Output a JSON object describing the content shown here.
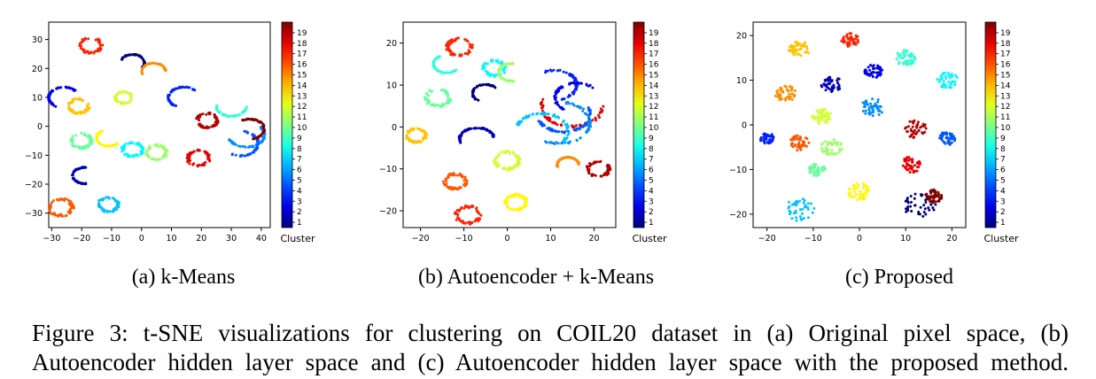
{
  "chart_data": [
    {
      "type": "scatter",
      "subcaption": "(a) k-Means",
      "x_ticks": [
        "−30",
        "−20",
        "−10",
        "0",
        "10",
        "20",
        "30",
        "40"
      ],
      "y_ticks": [
        "30",
        "20",
        "10",
        "0",
        "−10",
        "−20",
        "−30"
      ],
      "xlim": [
        -31,
        43
      ],
      "ylim": [
        -35,
        36
      ],
      "colorbar_label": "Cluster",
      "colorbar_ticks": [
        "19",
        "18",
        "17",
        "16",
        "15",
        "14",
        "13",
        "12",
        "11",
        "10",
        "9",
        "8",
        "7",
        "6",
        "5",
        "4",
        "3",
        "2",
        "1"
      ],
      "clusters": [
        {
          "cluster": 17,
          "shape": "loop",
          "x": -17,
          "y": 28,
          "r": 3.2
        },
        {
          "cluster": 16,
          "shape": "loop",
          "x": -27,
          "y": -28,
          "r": 3.5
        },
        {
          "cluster": 14,
          "shape": "loop",
          "x": -21,
          "y": 7,
          "r": 3
        },
        {
          "cluster": 10,
          "shape": "loop",
          "x": -20,
          "y": -5,
          "r": 3
        },
        {
          "cluster": 12,
          "shape": "loop",
          "x": -6,
          "y": 10,
          "r": 2.5
        },
        {
          "cluster": 8,
          "shape": "loop",
          "x": -3,
          "y": -8,
          "r": 3
        },
        {
          "cluster": 11,
          "shape": "loop",
          "x": 5,
          "y": -9,
          "r": 3
        },
        {
          "cluster": 7,
          "shape": "loop",
          "x": -11,
          "y": -27,
          "r": 3
        },
        {
          "cluster": 19,
          "shape": "loop",
          "x": 22,
          "y": 2,
          "r": 3
        },
        {
          "cluster": 18,
          "shape": "loop",
          "x": 19,
          "y": -11,
          "r": 3.2
        },
        {
          "cluster": 3,
          "shape": "arc",
          "x": -26,
          "y": 10,
          "r": 5
        },
        {
          "cluster": 2,
          "shape": "arc",
          "x": -19,
          "y": -17,
          "r": 4
        },
        {
          "cluster": 13,
          "shape": "arc",
          "x": -11,
          "y": -4,
          "r": 4
        },
        {
          "cluster": 9,
          "shape": "arc",
          "x": 30,
          "y": 7,
          "r": 5
        },
        {
          "cluster": 6,
          "shape": "arc",
          "x": 35,
          "y": -3,
          "r": 6
        },
        {
          "cluster": 5,
          "shape": "arc",
          "x": 33,
          "y": -6,
          "r": 6
        },
        {
          "cluster": 20,
          "shape": "arc",
          "x": 36,
          "y": -1,
          "r": 5
        },
        {
          "cluster": 1,
          "shape": "arc",
          "x": -3,
          "y": 22,
          "r": 4
        },
        {
          "cluster": 15,
          "shape": "arc",
          "x": 4,
          "y": 19,
          "r": 4
        },
        {
          "cluster": 4,
          "shape": "arc",
          "x": 14,
          "y": 10,
          "r": 5
        }
      ]
    },
    {
      "type": "scatter",
      "subcaption": "(b) Autoencoder + k-Means",
      "x_ticks": [
        "−20",
        "−10",
        "0",
        "10",
        "20"
      ],
      "y_ticks": [
        "20",
        "10",
        "0",
        "−10",
        "−20"
      ],
      "xlim": [
        -24,
        25
      ],
      "ylim": [
        -24,
        25
      ],
      "colorbar_label": "Cluster",
      "colorbar_ticks": [
        "19",
        "18",
        "17",
        "16",
        "15",
        "14",
        "13",
        "12",
        "11",
        "10",
        "9",
        "8",
        "7",
        "6",
        "5",
        "4",
        "3",
        "2",
        "1"
      ],
      "clusters": [
        {
          "cluster": 17,
          "shape": "loop",
          "x": -11,
          "y": 19,
          "r": 2.5
        },
        {
          "cluster": 14,
          "shape": "loop",
          "x": -21,
          "y": -2,
          "r": 2
        },
        {
          "cluster": 10,
          "shape": "loop",
          "x": -16,
          "y": 7,
          "r": 2.5
        },
        {
          "cluster": 8,
          "shape": "loop",
          "x": -3,
          "y": 14,
          "r": 2.2
        },
        {
          "cluster": 16,
          "shape": "loop",
          "x": -12,
          "y": -13,
          "r": 2.2
        },
        {
          "cluster": 17,
          "shape": "loop",
          "x": -9,
          "y": -21,
          "r": 2.5
        },
        {
          "cluster": 13,
          "shape": "loop",
          "x": 2,
          "y": -18,
          "r": 2.2
        },
        {
          "cluster": 12,
          "shape": "loop",
          "x": 0,
          "y": -8,
          "r": 2.5
        },
        {
          "cluster": 19,
          "shape": "loop",
          "x": 21,
          "y": -10,
          "r": 2.2
        },
        {
          "cluster": 2,
          "shape": "arc",
          "x": -7,
          "y": -3,
          "r": 4
        },
        {
          "cluster": 1,
          "shape": "arc",
          "x": -5,
          "y": 8,
          "r": 3
        },
        {
          "cluster": 11,
          "shape": "arc",
          "x": 1,
          "y": 13,
          "r": 3
        },
        {
          "cluster": 9,
          "shape": "arc",
          "x": -14,
          "y": 15,
          "r": 3
        },
        {
          "cluster": 18,
          "shape": "arc",
          "x": 15,
          "y": 5,
          "r": 7
        },
        {
          "cluster": 5,
          "shape": "arc",
          "x": 13,
          "y": 3,
          "r": 6
        },
        {
          "cluster": 6,
          "shape": "arc",
          "x": 12,
          "y": 1,
          "r": 7
        },
        {
          "cluster": 4,
          "shape": "arc",
          "x": 11,
          "y": 10,
          "r": 5
        },
        {
          "cluster": 7,
          "shape": "arc",
          "x": 8,
          "y": -1,
          "r": 6
        },
        {
          "cluster": 15,
          "shape": "arc",
          "x": 14,
          "y": -9,
          "r": 2.5
        },
        {
          "cluster": 3,
          "shape": "arc",
          "x": 16,
          "y": 7,
          "r": 5
        }
      ]
    },
    {
      "type": "scatter",
      "subcaption": "(c) Proposed",
      "x_ticks": [
        "−20",
        "−10",
        "0",
        "10",
        "20"
      ],
      "y_ticks": [
        "20",
        "10",
        "0",
        "−10",
        "−20"
      ],
      "xlim": [
        -23,
        23
      ],
      "ylim": [
        -23,
        23
      ],
      "colorbar_label": "Cluster",
      "colorbar_ticks": [
        "19",
        "18",
        "17",
        "16",
        "15",
        "14",
        "13",
        "12",
        "11",
        "10",
        "9",
        "8",
        "7",
        "6",
        "5",
        "4",
        "3",
        "2",
        "1"
      ],
      "clusters": [
        {
          "cluster": 14,
          "shape": "blob",
          "x": -13,
          "y": 17,
          "r": 1.8
        },
        {
          "cluster": 17,
          "shape": "blob",
          "x": -2,
          "y": 19,
          "r": 1.5
        },
        {
          "cluster": 9,
          "shape": "blob",
          "x": 10,
          "y": 15,
          "r": 1.8
        },
        {
          "cluster": 2,
          "shape": "blob",
          "x": -6,
          "y": 9,
          "r": 1.8
        },
        {
          "cluster": 3,
          "shape": "blob",
          "x": 3,
          "y": 12,
          "r": 1.5
        },
        {
          "cluster": 8,
          "shape": "blob",
          "x": 19,
          "y": 10,
          "r": 1.8
        },
        {
          "cluster": 15,
          "shape": "blob",
          "x": -16,
          "y": 7,
          "r": 1.8
        },
        {
          "cluster": 12,
          "shape": "blob",
          "x": -8,
          "y": 2,
          "r": 1.8
        },
        {
          "cluster": 6,
          "shape": "blob",
          "x": 3,
          "y": 4,
          "r": 2
        },
        {
          "cluster": 19,
          "shape": "blob",
          "x": 12,
          "y": -1,
          "r": 2
        },
        {
          "cluster": 4,
          "shape": "blob",
          "x": -20,
          "y": -3,
          "r": 1.2
        },
        {
          "cluster": 16,
          "shape": "blob",
          "x": -13,
          "y": -4,
          "r": 1.8
        },
        {
          "cluster": 11,
          "shape": "blob",
          "x": -6,
          "y": -5,
          "r": 1.8
        },
        {
          "cluster": 5,
          "shape": "blob",
          "x": 19,
          "y": -3,
          "r": 1.5
        },
        {
          "cluster": 10,
          "shape": "blob",
          "x": -9,
          "y": -10,
          "r": 1.5
        },
        {
          "cluster": 18,
          "shape": "blob",
          "x": 11,
          "y": -9,
          "r": 1.8
        },
        {
          "cluster": 7,
          "shape": "blob",
          "x": -13,
          "y": -19,
          "r": 2.5
        },
        {
          "cluster": 13,
          "shape": "blob",
          "x": 0,
          "y": -15,
          "r": 2
        },
        {
          "cluster": 1,
          "shape": "blob",
          "x": 13,
          "y": -18,
          "r": 2.8
        },
        {
          "cluster": 20,
          "shape": "blob",
          "x": 16,
          "y": -16,
          "r": 1.5
        }
      ]
    }
  ],
  "caption": {
    "lines": [
      "Figure 3: t-SNE visualizations for clustering on COIL20 dataset in (a) Original pixel space, (b)",
      "Autoencoder hidden layer space and (c) Autoencoder hidden layer space with the proposed method."
    ]
  }
}
